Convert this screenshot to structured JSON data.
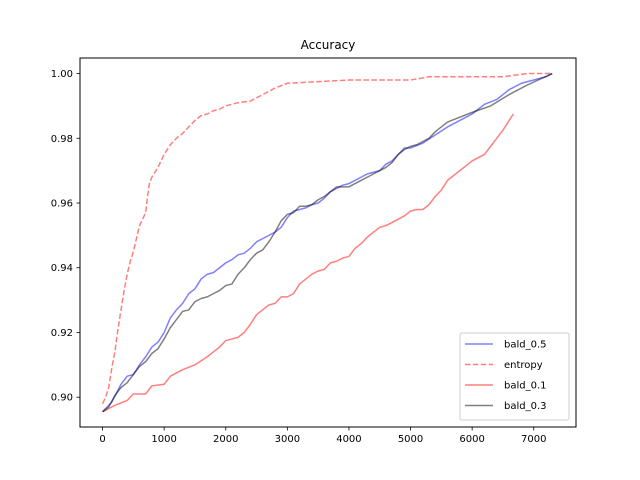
{
  "chart_data": {
    "type": "line",
    "title": "Accuracy",
    "xlabel": "",
    "ylabel": "",
    "xlim": [
      -366,
      7686
    ],
    "ylim": [
      0.8908,
      1.0048
    ],
    "xticks": [
      0,
      1000,
      2000,
      3000,
      4000,
      5000,
      6000,
      7000
    ],
    "yticks": [
      0.9,
      0.92,
      0.94,
      0.96,
      0.98,
      1.0
    ],
    "ytick_labels": [
      "0.90",
      "0.92",
      "0.94",
      "0.96",
      "0.98",
      "1.00"
    ],
    "grid": false,
    "legend": "bottom-right",
    "series": [
      {
        "name": "bald_0.5",
        "color": "#0000ff",
        "opacity": 0.5,
        "dash": "solid",
        "points": [
          [
            0,
            0.8955
          ],
          [
            150,
            0.8985
          ],
          [
            300,
            0.904
          ],
          [
            400,
            0.9065
          ],
          [
            500,
            0.907
          ],
          [
            600,
            0.91
          ],
          [
            700,
            0.9125
          ],
          [
            800,
            0.9155
          ],
          [
            900,
            0.917
          ],
          [
            1000,
            0.92
          ],
          [
            1100,
            0.9245
          ],
          [
            1200,
            0.927
          ],
          [
            1300,
            0.929
          ],
          [
            1400,
            0.932
          ],
          [
            1500,
            0.9335
          ],
          [
            1600,
            0.9365
          ],
          [
            1700,
            0.938
          ],
          [
            1800,
            0.9385
          ],
          [
            1900,
            0.94
          ],
          [
            2000,
            0.9415
          ],
          [
            2100,
            0.9425
          ],
          [
            2200,
            0.944
          ],
          [
            2300,
            0.9445
          ],
          [
            2400,
            0.946
          ],
          [
            2500,
            0.948
          ],
          [
            2600,
            0.949
          ],
          [
            2700,
            0.95
          ],
          [
            2800,
            0.951
          ],
          [
            2900,
            0.9525
          ],
          [
            3000,
            0.9555
          ],
          [
            3100,
            0.9575
          ],
          [
            3200,
            0.958
          ],
          [
            3300,
            0.9585
          ],
          [
            3400,
            0.9595
          ],
          [
            3500,
            0.96
          ],
          [
            3600,
            0.9615
          ],
          [
            3700,
            0.9635
          ],
          [
            3800,
            0.9645
          ],
          [
            3900,
            0.9655
          ],
          [
            4000,
            0.966
          ],
          [
            4200,
            0.968
          ],
          [
            4300,
            0.969
          ],
          [
            4500,
            0.97
          ],
          [
            4600,
            0.972
          ],
          [
            4700,
            0.973
          ],
          [
            4800,
            0.975
          ],
          [
            4900,
            0.977
          ],
          [
            5000,
            0.977
          ],
          [
            5200,
            0.9785
          ],
          [
            5400,
            0.981
          ],
          [
            5600,
            0.9835
          ],
          [
            5800,
            0.9855
          ],
          [
            6000,
            0.9875
          ],
          [
            6200,
            0.9905
          ],
          [
            6400,
            0.992
          ],
          [
            6600,
            0.995
          ],
          [
            6800,
            0.997
          ],
          [
            7000,
            0.998
          ],
          [
            7200,
            0.999
          ],
          [
            7300,
            1.0
          ]
        ]
      },
      {
        "name": "entropy",
        "color": "#ff0000",
        "opacity": 0.5,
        "dash": "dashed",
        "points": [
          [
            0,
            0.898
          ],
          [
            50,
            0.9
          ],
          [
            100,
            0.903
          ],
          [
            150,
            0.909
          ],
          [
            200,
            0.914
          ],
          [
            250,
            0.921
          ],
          [
            300,
            0.927
          ],
          [
            350,
            0.933
          ],
          [
            400,
            0.938
          ],
          [
            450,
            0.942
          ],
          [
            500,
            0.945
          ],
          [
            550,
            0.949
          ],
          [
            600,
            0.953
          ],
          [
            650,
            0.955
          ],
          [
            700,
            0.957
          ],
          [
            730,
            0.962
          ],
          [
            760,
            0.966
          ],
          [
            800,
            0.968
          ],
          [
            900,
            0.971
          ],
          [
            1000,
            0.975
          ],
          [
            1100,
            0.978
          ],
          [
            1200,
            0.98
          ],
          [
            1300,
            0.9815
          ],
          [
            1400,
            0.9835
          ],
          [
            1500,
            0.9855
          ],
          [
            1600,
            0.987
          ],
          [
            1700,
            0.9875
          ],
          [
            1800,
            0.9885
          ],
          [
            1900,
            0.989
          ],
          [
            2000,
            0.99
          ],
          [
            2200,
            0.991
          ],
          [
            2400,
            0.9915
          ],
          [
            2600,
            0.9935
          ],
          [
            2800,
            0.9955
          ],
          [
            3000,
            0.997
          ],
          [
            3500,
            0.9975
          ],
          [
            4000,
            0.998
          ],
          [
            5000,
            0.998
          ],
          [
            5300,
            0.999
          ],
          [
            6000,
            0.999
          ],
          [
            6500,
            0.999
          ],
          [
            6900,
            1.0
          ],
          [
            7300,
            1.0
          ]
        ]
      },
      {
        "name": "bald_0.1",
        "color": "#ff0000",
        "opacity": 0.5,
        "dash": "solid",
        "points": [
          [
            0,
            0.8955
          ],
          [
            200,
            0.8975
          ],
          [
            400,
            0.899
          ],
          [
            500,
            0.901
          ],
          [
            700,
            0.901
          ],
          [
            800,
            0.9035
          ],
          [
            1000,
            0.904
          ],
          [
            1100,
            0.9065
          ],
          [
            1300,
            0.9085
          ],
          [
            1500,
            0.91
          ],
          [
            1700,
            0.9125
          ],
          [
            1900,
            0.9155
          ],
          [
            2000,
            0.9175
          ],
          [
            2200,
            0.9185
          ],
          [
            2300,
            0.92
          ],
          [
            2400,
            0.9225
          ],
          [
            2500,
            0.9255
          ],
          [
            2600,
            0.927
          ],
          [
            2700,
            0.9285
          ],
          [
            2800,
            0.929
          ],
          [
            2900,
            0.931
          ],
          [
            3000,
            0.931
          ],
          [
            3100,
            0.932
          ],
          [
            3200,
            0.935
          ],
          [
            3300,
            0.9365
          ],
          [
            3400,
            0.938
          ],
          [
            3500,
            0.939
          ],
          [
            3600,
            0.9395
          ],
          [
            3700,
            0.9415
          ],
          [
            3800,
            0.942
          ],
          [
            3900,
            0.943
          ],
          [
            4000,
            0.9435
          ],
          [
            4100,
            0.946
          ],
          [
            4200,
            0.9475
          ],
          [
            4300,
            0.9495
          ],
          [
            4400,
            0.951
          ],
          [
            4500,
            0.9525
          ],
          [
            4600,
            0.953
          ],
          [
            4700,
            0.954
          ],
          [
            4800,
            0.955
          ],
          [
            4900,
            0.956
          ],
          [
            5000,
            0.9575
          ],
          [
            5100,
            0.958
          ],
          [
            5200,
            0.958
          ],
          [
            5300,
            0.9595
          ],
          [
            5400,
            0.962
          ],
          [
            5500,
            0.964
          ],
          [
            5600,
            0.967
          ],
          [
            5700,
            0.9685
          ],
          [
            5800,
            0.97
          ],
          [
            5900,
            0.9715
          ],
          [
            6000,
            0.973
          ],
          [
            6100,
            0.974
          ],
          [
            6200,
            0.975
          ],
          [
            6300,
            0.9775
          ],
          [
            6400,
            0.98
          ],
          [
            6500,
            0.9825
          ],
          [
            6600,
            0.9855
          ],
          [
            6670,
            0.9875
          ]
        ]
      },
      {
        "name": "bald_0.3",
        "color": "#000000",
        "opacity": 0.5,
        "dash": "solid",
        "points": [
          [
            0,
            0.8955
          ],
          [
            100,
            0.897
          ],
          [
            200,
            0.9005
          ],
          [
            300,
            0.903
          ],
          [
            400,
            0.9045
          ],
          [
            500,
            0.907
          ],
          [
            600,
            0.9095
          ],
          [
            700,
            0.911
          ],
          [
            800,
            0.9135
          ],
          [
            900,
            0.915
          ],
          [
            1000,
            0.918
          ],
          [
            1100,
            0.9215
          ],
          [
            1200,
            0.924
          ],
          [
            1300,
            0.9265
          ],
          [
            1400,
            0.927
          ],
          [
            1500,
            0.9295
          ],
          [
            1600,
            0.9305
          ],
          [
            1700,
            0.931
          ],
          [
            1800,
            0.932
          ],
          [
            1900,
            0.933
          ],
          [
            2000,
            0.9345
          ],
          [
            2100,
            0.935
          ],
          [
            2200,
            0.938
          ],
          [
            2300,
            0.94
          ],
          [
            2400,
            0.9425
          ],
          [
            2500,
            0.9445
          ],
          [
            2600,
            0.9455
          ],
          [
            2700,
            0.948
          ],
          [
            2800,
            0.951
          ],
          [
            2900,
            0.9545
          ],
          [
            3000,
            0.9565
          ],
          [
            3100,
            0.957
          ],
          [
            3200,
            0.959
          ],
          [
            3300,
            0.959
          ],
          [
            3400,
            0.9595
          ],
          [
            3500,
            0.961
          ],
          [
            3600,
            0.962
          ],
          [
            3700,
            0.9635
          ],
          [
            3800,
            0.965
          ],
          [
            3900,
            0.965
          ],
          [
            4000,
            0.965
          ],
          [
            4100,
            0.966
          ],
          [
            4200,
            0.967
          ],
          [
            4300,
            0.968
          ],
          [
            4400,
            0.969
          ],
          [
            4500,
            0.97
          ],
          [
            4600,
            0.971
          ],
          [
            4700,
            0.9725
          ],
          [
            4800,
            0.975
          ],
          [
            4900,
            0.9765
          ],
          [
            5000,
            0.9775
          ],
          [
            5100,
            0.978
          ],
          [
            5200,
            0.979
          ],
          [
            5300,
            0.98
          ],
          [
            5400,
            0.982
          ],
          [
            5500,
            0.9835
          ],
          [
            5600,
            0.985
          ],
          [
            5800,
            0.9865
          ],
          [
            6000,
            0.988
          ],
          [
            6300,
            0.99
          ],
          [
            6600,
            0.9935
          ],
          [
            6900,
            0.9965
          ],
          [
            7300,
            1.0
          ]
        ]
      }
    ]
  }
}
